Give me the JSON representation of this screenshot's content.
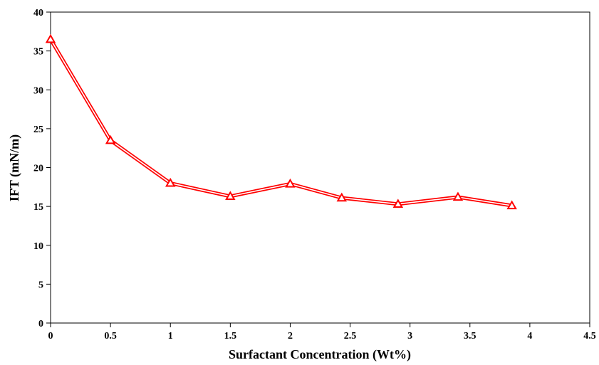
{
  "chart_data": {
    "type": "line",
    "title": "",
    "xlabel": "Surfactant Concentration (Wt%)",
    "ylabel": "IFT (mN/m)",
    "xlim": [
      0,
      4.5
    ],
    "ylim": [
      0,
      40
    ],
    "x_ticks": [
      0,
      0.5,
      1,
      1.5,
      2,
      2.5,
      3,
      3.5,
      4,
      4.5
    ],
    "x_tick_labels": [
      "0",
      "0.5",
      "1",
      "1.5",
      "2",
      "2.5",
      "3",
      "3.5",
      "4",
      "4.5"
    ],
    "y_ticks": [
      0,
      5,
      10,
      15,
      20,
      25,
      30,
      35,
      40
    ],
    "y_tick_labels": [
      "0",
      "5",
      "10",
      "15",
      "20",
      "25",
      "30",
      "35",
      "40"
    ],
    "grid": false,
    "legend": "none",
    "marker": "triangle-open",
    "series_color": "#ff0000",
    "series": [
      {
        "x": [
          0,
          0.5,
          1,
          1.5,
          2,
          2.43,
          2.9,
          3.4,
          3.85
        ],
        "values": [
          36.5,
          23.5,
          18,
          16.3,
          17.9,
          16.1,
          15.3,
          16.2,
          15.1
        ]
      }
    ]
  }
}
